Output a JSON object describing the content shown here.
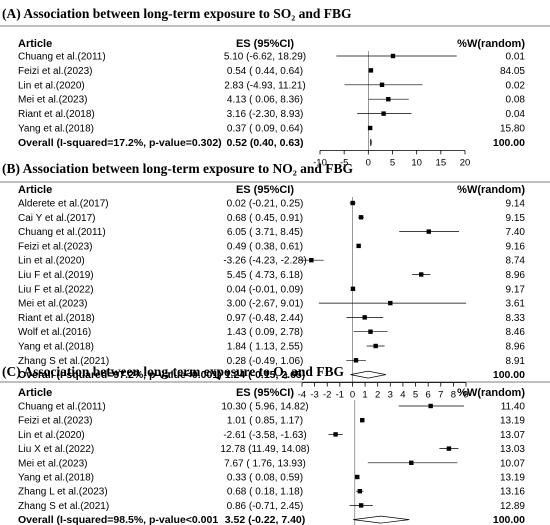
{
  "chart_data": [
    {
      "type": "forest",
      "title": "(A) Association between long-term exposure to SO₂ and FBG",
      "headers": {
        "article": "Article",
        "es": "ES (95%CI)",
        "weight": "%W(random)"
      },
      "rows": [
        {
          "article": "Chuang et al.(2011)",
          "es_text": "5.10 (-6.62, 18.29)",
          "weight": "0.01",
          "est": 5.1,
          "lo": -6.62,
          "hi": 18.29
        },
        {
          "article": "Feizi et al.(2023)",
          "es_text": "0.54 ( 0.44,  0.64)",
          "weight": "84.05",
          "est": 0.54,
          "lo": 0.44,
          "hi": 0.64
        },
        {
          "article": "Lin et al.(2020)",
          "es_text": "2.83 (-4.93, 11.21)",
          "weight": "0.02",
          "est": 2.83,
          "lo": -4.93,
          "hi": 11.21
        },
        {
          "article": "Mei et al.(2023)",
          "es_text": "4.13 ( 0.06,  8.36)",
          "weight": "0.08",
          "est": 4.13,
          "lo": 0.06,
          "hi": 8.36
        },
        {
          "article": "Riant et al.(2018)",
          "es_text": "3.16 (-2.30,  8.93)",
          "weight": "0.04",
          "est": 3.16,
          "lo": -2.3,
          "hi": 8.93
        },
        {
          "article": "Yang  et al.(2018)",
          "es_text": "0.37 ( 0.09,  0.64)",
          "weight": "15.80",
          "est": 0.37,
          "lo": 0.09,
          "hi": 0.64
        }
      ],
      "overall": {
        "label": "Overall (I-squared=17.2%, p-value=0.302)",
        "es_text": "0.52 (0.40, 0.63)",
        "weight": "100.00",
        "est": 0.52,
        "lo": 0.4,
        "hi": 0.63
      },
      "xticks": [
        -10,
        -5,
        0,
        5,
        10,
        15,
        20
      ],
      "xlim": [
        -10,
        20
      ]
    },
    {
      "type": "forest",
      "title": "(B) Association between long-term exposure to NO₂ and FBG",
      "headers": {
        "article": "Article",
        "es": "ES (95%CI)",
        "weight": "%W(random)"
      },
      "rows": [
        {
          "article": "Alderete et al.(2017)",
          "es_text": "0.02 (-0.21,  0.25)",
          "weight": "9.14",
          "est": 0.02,
          "lo": -0.21,
          "hi": 0.25
        },
        {
          "article": "Cai Y et al.(2017)",
          "es_text": "0.68 ( 0.45,  0.91)",
          "weight": "9.15",
          "est": 0.68,
          "lo": 0.45,
          "hi": 0.91
        },
        {
          "article": "Chuang et al.(2011)",
          "es_text": "6.05 ( 3.71,  8.45)",
          "weight": "7.40",
          "est": 6.05,
          "lo": 3.71,
          "hi": 8.45
        },
        {
          "article": "Feizi et al.(2023)",
          "es_text": "0.49 ( 0.38,  0.61)",
          "weight": "9.16",
          "est": 0.49,
          "lo": 0.38,
          "hi": 0.61
        },
        {
          "article": "Lin et al.(2020)",
          "es_text": "-3.26 (-4.23, -2.28)",
          "weight": "8.74",
          "est": -3.26,
          "lo": -4.23,
          "hi": -2.28
        },
        {
          "article": "Liu F et al.(2019)",
          "es_text": "5.45 ( 4.73,  6.18)",
          "weight": "8.96",
          "est": 5.45,
          "lo": 4.73,
          "hi": 6.18
        },
        {
          "article": "Liu F et al.(2022)",
          "es_text": "0.04 (-0.01,  0.09)",
          "weight": "9.17",
          "est": 0.04,
          "lo": -0.01,
          "hi": 0.09
        },
        {
          "article": "Mei et al.(2023)",
          "es_text": "3.00 (-2.67,  9.01)",
          "weight": "3.61",
          "est": 3.0,
          "lo": -2.67,
          "hi": 9.01
        },
        {
          "article": "Riant et al.(2018)",
          "es_text": "0.97 (-0.48,  2.44)",
          "weight": "8.33",
          "est": 0.97,
          "lo": -0.48,
          "hi": 2.44
        },
        {
          "article": "Wolf et al.(2016)",
          "es_text": "1.43 ( 0.09,  2.78)",
          "weight": "8.46",
          "est": 1.43,
          "lo": 0.09,
          "hi": 2.78
        },
        {
          "article": "Yang  et al.(2018)",
          "es_text": "1.84 ( 1.13,  2.55)",
          "weight": "8.96",
          "est": 1.84,
          "lo": 1.13,
          "hi": 2.55
        },
        {
          "article": "Zhang S et al.(2021)",
          "es_text": "0.28 (-0.49,  1.06)",
          "weight": "8.91",
          "est": 0.28,
          "lo": -0.49,
          "hi": 1.06
        }
      ],
      "overall": {
        "label": "Overall (I-squared=97.2%, p-value<0.001)",
        "es_text": "1.24 (-0.15, 2.65)",
        "weight": "100.00",
        "est": 1.24,
        "lo": -0.15,
        "hi": 2.65
      },
      "xticks": [
        -4,
        -3,
        -2,
        -1,
        0,
        1,
        2,
        3,
        4,
        5,
        6,
        7,
        8,
        9
      ],
      "xlim": [
        -4,
        9
      ]
    },
    {
      "type": "forest",
      "title": "(C) Association between long-term exposure to O₃ and FBG",
      "headers": {
        "article": "Article",
        "es": "ES (95%CI)",
        "weight": "%W(random)"
      },
      "rows": [
        {
          "article": "Chuang  et al.(2011)",
          "es_text": "10.30 ( 5.96, 14.82)",
          "weight": "11.40",
          "est": 10.3,
          "lo": 5.96,
          "hi": 14.82
        },
        {
          "article": "Feizi et al.(2023)",
          "es_text": "1.01 ( 0.85,  1.17)",
          "weight": "13.19",
          "est": 1.01,
          "lo": 0.85,
          "hi": 1.17
        },
        {
          "article": "Lin et al.(2020)",
          "es_text": "-2.61 (-3.58, -1.63)",
          "weight": "13.07",
          "est": -2.61,
          "lo": -3.58,
          "hi": -1.63
        },
        {
          "article": "Liu X et al.(2022)",
          "es_text": "12.78 (11.49, 14.08)",
          "weight": "13.03",
          "est": 12.78,
          "lo": 11.49,
          "hi": 14.08
        },
        {
          "article": "Mei et al.(2023)",
          "es_text": "7.67 ( 1.76, 13.93)",
          "weight": "10.07",
          "est": 7.67,
          "lo": 1.76,
          "hi": 13.93
        },
        {
          "article": "Yang  et al.(2018)",
          "es_text": "0.33 ( 0.08,  0.59)",
          "weight": "13.19",
          "est": 0.33,
          "lo": 0.08,
          "hi": 0.59
        },
        {
          "article": "Zhang L et al.(2023)",
          "es_text": "0.68 ( 0.18,  1.18)",
          "weight": "13.16",
          "est": 0.68,
          "lo": 0.18,
          "hi": 1.18
        },
        {
          "article": "Zhang S et al.(2021)",
          "es_text": "0.86 (-0.71,  2.45)",
          "weight": "12.89",
          "est": 0.86,
          "lo": -0.71,
          "hi": 2.45
        }
      ],
      "overall": {
        "label": "Overall (I-squared=98.5%, p-value<0.001",
        "es_text": "3.52 (-0.22, 7.40)",
        "weight": "100.00",
        "est": 3.52,
        "lo": -0.22,
        "hi": 7.4
      },
      "xticks": [
        -5,
        0,
        5,
        10,
        15
      ],
      "xlim": [
        -5,
        17
      ]
    }
  ]
}
